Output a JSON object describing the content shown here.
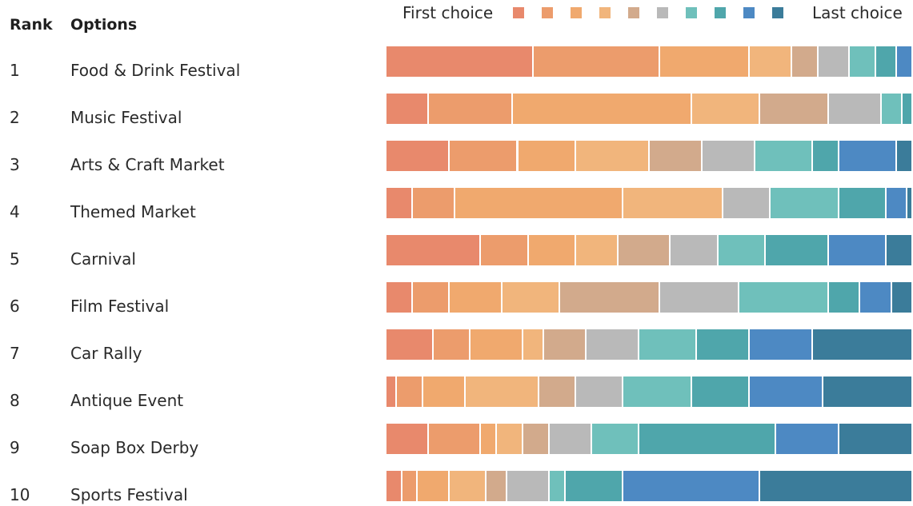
{
  "header": {
    "rank": "Rank",
    "options": "Options"
  },
  "legend": {
    "first": "First choice",
    "last": "Last choice"
  },
  "chart_data": {
    "type": "bar",
    "stacked": true,
    "orientation": "horizontal",
    "normalized_to": 100,
    "categories": [
      {
        "rank": "1",
        "label": "Food & Drink Festival"
      },
      {
        "rank": "2",
        "label": "Music Festival"
      },
      {
        "rank": "3",
        "label": "Arts & Craft Market"
      },
      {
        "rank": "4",
        "label": "Themed Market"
      },
      {
        "rank": "5",
        "label": "Carnival"
      },
      {
        "rank": "6",
        "label": "Film Festival"
      },
      {
        "rank": "7",
        "label": "Car Rally"
      },
      {
        "rank": "8",
        "label": "Antique Event"
      },
      {
        "rank": "9",
        "label": "Soap Box Derby"
      },
      {
        "rank": "10",
        "label": "Sports Festival"
      }
    ],
    "colors": [
      "#e8896c",
      "#ec9c6c",
      "#f0a96e",
      "#f1b57c",
      "#d2aa8c",
      "#b9b9b9",
      "#6fc0bb",
      "#4fa6ab",
      "#4d89c3",
      "#3b7c9a"
    ],
    "series_values": [
      [
        28,
        24,
        17,
        8,
        5,
        6,
        5,
        4,
        3,
        0
      ],
      [
        8,
        16,
        34,
        13,
        13,
        10,
        4,
        2,
        0,
        0
      ],
      [
        12,
        13,
        11,
        14,
        10,
        10,
        11,
        5,
        11,
        3
      ],
      [
        5,
        8,
        32,
        19,
        0,
        9,
        13,
        9,
        4,
        1
      ],
      [
        18,
        9,
        9,
        8,
        10,
        9,
        9,
        12,
        11,
        5
      ],
      [
        5,
        7,
        10,
        11,
        19,
        15,
        17,
        6,
        6,
        4
      ],
      [
        9,
        7,
        10,
        4,
        8,
        10,
        11,
        10,
        12,
        19
      ],
      [
        2,
        5,
        8,
        14,
        7,
        9,
        13,
        11,
        14,
        17
      ],
      [
        8,
        10,
        3,
        5,
        5,
        8,
        9,
        26,
        12,
        14
      ],
      [
        3,
        3,
        6,
        7,
        4,
        8,
        3,
        11,
        26,
        29
      ]
    ]
  }
}
